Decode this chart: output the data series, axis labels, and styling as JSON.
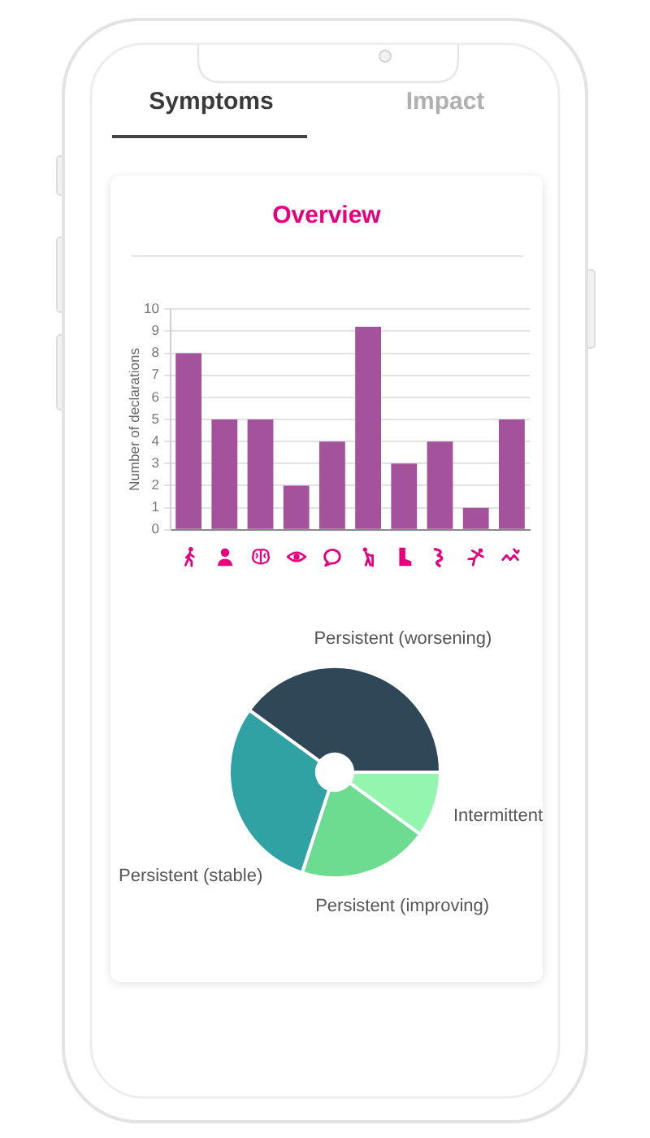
{
  "chart_data": [
    {
      "type": "bar",
      "title": "Overview",
      "annotations": [
        "Symptoms",
        "Impact"
      ],
      "ylabel": "Number of declarations",
      "categories": [
        null,
        null,
        null,
        null,
        null,
        null,
        null,
        null,
        null,
        null
      ],
      "values": [
        8,
        5,
        5,
        2,
        4,
        9.2,
        3,
        4,
        1,
        5
      ],
      "color": "#a4529b",
      "ylim": [
        0,
        10
      ],
      "yticks": [
        0,
        1,
        2,
        3,
        4,
        5,
        6,
        7,
        8,
        9,
        10
      ],
      "grid": "y"
    },
    {
      "type": "donut",
      "categories": [
        "Persistent (worsening)",
        "Intermittent",
        "Persistent (improving)",
        "Persistent (stable)"
      ],
      "values": [
        40,
        10,
        20,
        30
      ],
      "colors": [
        "#2f4858",
        "#93f5ae",
        "#6cdc90",
        "#31a2a4"
      ]
    }
  ]
}
